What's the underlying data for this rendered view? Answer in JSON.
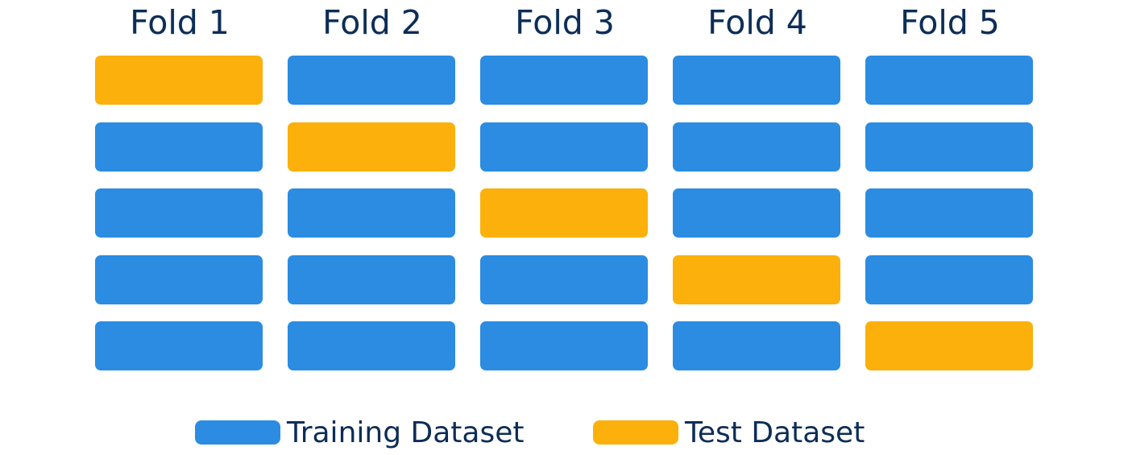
{
  "colors": {
    "training": "#2b8ce2",
    "test": "#fbb00b",
    "text": "#0d2d55"
  },
  "folds": [
    {
      "label": "Fold 1",
      "test_index": 0
    },
    {
      "label": "Fold 2",
      "test_index": 1
    },
    {
      "label": "Fold 3",
      "test_index": 2
    },
    {
      "label": "Fold 4",
      "test_index": 3
    },
    {
      "label": "Fold 5",
      "test_index": 4
    }
  ],
  "block_count": 5,
  "legend": {
    "training_label": "Training Dataset",
    "test_label": "Test Dataset"
  }
}
